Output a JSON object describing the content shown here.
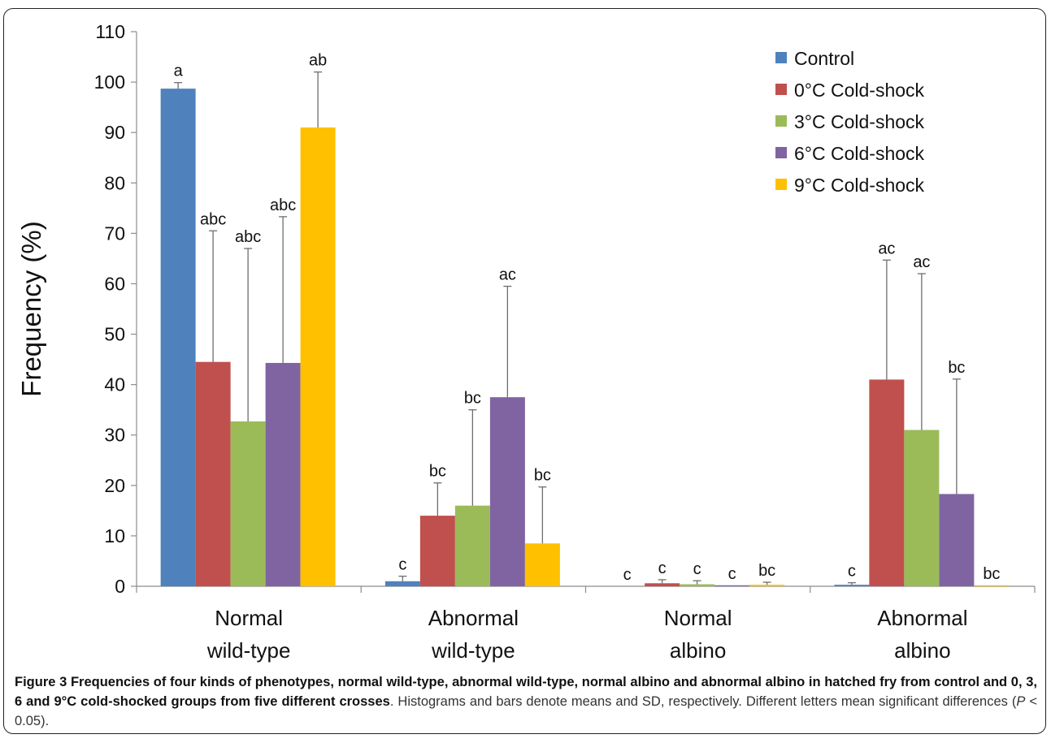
{
  "chart_data": {
    "type": "bar",
    "categories": [
      [
        "Normal",
        "wild-type"
      ],
      [
        "Abnormal",
        "wild-type"
      ],
      [
        "Normal",
        "albino"
      ],
      [
        "Abnormal",
        "albino"
      ]
    ],
    "ylabel": "Frequency (%)",
    "ylim": [
      0,
      110
    ],
    "ytick_step": 10,
    "legend_position": "top-right",
    "series": [
      {
        "name": "Control",
        "color": "#4f81bd",
        "values": [
          98.7,
          1.0,
          0.0,
          0.3
        ],
        "errors": [
          1.2,
          1.0,
          0.0,
          0.4
        ],
        "letters": [
          "a",
          "c",
          "c",
          "c"
        ]
      },
      {
        "name": "0°C Cold-shock",
        "color": "#c0504d",
        "values": [
          44.5,
          14.0,
          0.6,
          41.0
        ],
        "errors": [
          26.0,
          6.5,
          0.7,
          23.7
        ],
        "letters": [
          "abc",
          "bc",
          "c",
          "ac"
        ]
      },
      {
        "name": "3°C Cold-shock",
        "color": "#9bbb59",
        "values": [
          32.7,
          16.0,
          0.4,
          31.0
        ],
        "errors": [
          34.3,
          19.0,
          0.7,
          31.0
        ],
        "letters": [
          "abc",
          "bc",
          "c",
          "ac"
        ]
      },
      {
        "name": "6°C Cold-shock",
        "color": "#8064a2",
        "values": [
          44.3,
          37.5,
          0.2,
          18.3
        ],
        "errors": [
          29.0,
          22.0,
          0.0,
          22.8
        ],
        "letters": [
          "abc",
          "ac",
          "c",
          "bc"
        ]
      },
      {
        "name": "9°C Cold-shock",
        "color": "#ffc000",
        "values": [
          91.0,
          8.5,
          0.3,
          0.2
        ],
        "errors": [
          11.0,
          11.2,
          0.5,
          0.0
        ],
        "letters": [
          "ab",
          "bc",
          "bc",
          "bc"
        ]
      }
    ]
  },
  "caption": {
    "label": "Figure 3",
    "title": "Frequencies of four kinds of phenotypes, normal wild-type, abnormal wild-type, normal albino and abnormal albino in hatched fry from control and 0, 3, 6 and 9°C cold-shocked groups from five different crosses",
    "text_before_p": ". Histograms and bars denote means and SD, respectively. Different letters mean significant differences (",
    "p_symbol": "P",
    "text_after_p": " < 0.05)."
  }
}
